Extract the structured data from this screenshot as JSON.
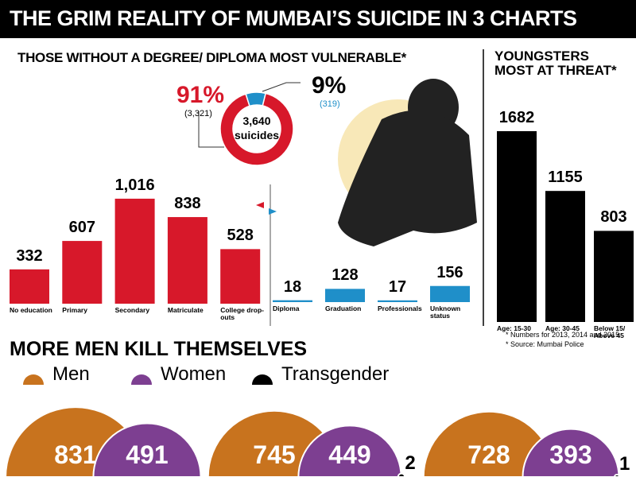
{
  "title": "THE GRIM REALITY OF MUMBAI’S SUICIDE IN 3 CHARTS",
  "footnotes": [
    "* Numbers for 2013, 2014 and 2015",
    "* Source: Mumbai Police"
  ],
  "chart_data": [
    {
      "type": "pie",
      "title": "THOSE WITHOUT A DEGREE/ DIPLOMA MOST VULNERABLE*",
      "categories": [
        null,
        null
      ],
      "values": [
        3321,
        319
      ],
      "value_labels": [
        "(3,321)",
        "(319)"
      ],
      "percent_labels": [
        "91%",
        "9%"
      ],
      "colors": [
        "#d7182a",
        "#1f8fc9"
      ],
      "total": 3640,
      "total_label": "3,640",
      "total_caption": "suicides"
    },
    {
      "type": "bar",
      "categories": [
        "No education",
        "Primary",
        "Secondary",
        "Matriculate",
        "College drop-outs"
      ],
      "values": [
        332,
        607,
        1016,
        838,
        528
      ],
      "value_labels": [
        "332",
        "607",
        "1,016",
        "838",
        "528"
      ],
      "color": "#d7182a"
    },
    {
      "type": "bar",
      "categories": [
        "Diploma",
        "Graduation",
        "Professionals",
        "Unknown status"
      ],
      "values": [
        18,
        128,
        17,
        156
      ],
      "color": "#1f8fc9"
    },
    {
      "type": "bar",
      "title": "YOUNGSTERS MOST AT THREAT*",
      "categories": [
        "Age: 15-30",
        "Age: 30-45",
        "Below 15/ Above 45"
      ],
      "values": [
        1682,
        1155,
        803
      ],
      "color": "#000000"
    },
    {
      "type": "semicircle",
      "title": "MORE MEN KILL THEMSELVES",
      "categories": [
        null,
        null,
        null
      ],
      "series": [
        {
          "name": "Men",
          "color": "#c8731e",
          "values": [
            831,
            745,
            728
          ]
        },
        {
          "name": "Women",
          "color": "#7d3f91",
          "values": [
            491,
            449,
            393
          ]
        },
        {
          "name": "Transgender",
          "color": "#000000",
          "values": [
            null,
            2,
            1
          ]
        }
      ]
    }
  ]
}
